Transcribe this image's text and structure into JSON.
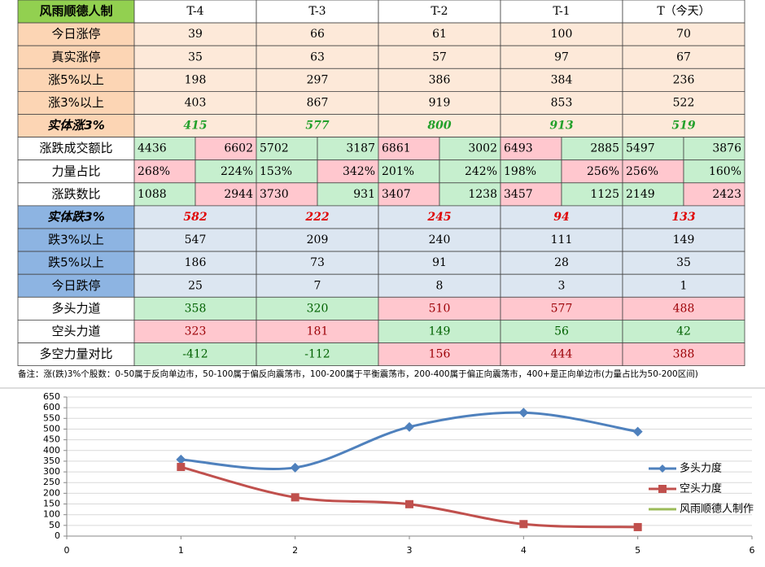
{
  "table": {
    "header": [
      "风雨顺德人制",
      "T-4",
      "T-3",
      "T-2",
      "T-1",
      "T（今天）"
    ],
    "rows": [
      {
        "label": "今日涨停",
        "cells": [
          39,
          66,
          61,
          100,
          70
        ]
      },
      {
        "label": "真实涨停",
        "cells": [
          35,
          63,
          57,
          97,
          67
        ]
      },
      {
        "label": "涨5%以上",
        "cells": [
          198,
          297,
          386,
          384,
          236
        ]
      },
      {
        "label": "涨3%以上",
        "cells": [
          403,
          867,
          919,
          853,
          522
        ]
      },
      {
        "label": "实体涨3%",
        "cells": [
          415,
          577,
          800,
          913,
          519
        ]
      },
      {
        "label": "涨跌成交额比",
        "cells": [
          [
            4436,
            6602
          ],
          [
            5702,
            3187
          ],
          [
            6861,
            3002
          ],
          [
            6493,
            2885
          ],
          [
            5497,
            3876
          ]
        ]
      },
      {
        "label": "力量占比",
        "cells": [
          [
            "268%",
            "224%"
          ],
          [
            "153%",
            "342%"
          ],
          [
            "201%",
            "242%"
          ],
          [
            "198%",
            "256%"
          ],
          [
            "256%",
            "160%"
          ]
        ]
      },
      {
        "label": "涨跌数比",
        "cells": [
          [
            1088,
            2944
          ],
          [
            3730,
            931
          ],
          [
            3407,
            1238
          ],
          [
            3457,
            1125
          ],
          [
            2149,
            2423
          ]
        ]
      },
      {
        "label": "实体跌3%",
        "cells": [
          582,
          222,
          245,
          94,
          133
        ]
      },
      {
        "label": "跌3%以上",
        "cells": [
          547,
          209,
          240,
          111,
          149
        ]
      },
      {
        "label": "跌5%以上",
        "cells": [
          186,
          73,
          91,
          28,
          35
        ]
      },
      {
        "label": "今日跌停",
        "cells": [
          25,
          7,
          8,
          3,
          1
        ]
      },
      {
        "label": "多头力道",
        "cells": [
          358,
          320,
          510,
          577,
          488
        ]
      },
      {
        "label": "空头力道",
        "cells": [
          323,
          181,
          149,
          56,
          42
        ]
      },
      {
        "label": "多空力量对比",
        "cells": [
          -412,
          -112,
          156,
          444,
          388
        ]
      }
    ]
  },
  "note": "备注：涨(跌)3%个股数：0-50属于反向单边市，50-100属于偏反向震荡市，100-200属于平衡震荡市，200-400属于偏正向震荡市，400+是正向单边市(力量占比为50-200区间)",
  "chart_data": {
    "type": "line",
    "x": [
      1,
      2,
      3,
      4,
      5
    ],
    "xlim": [
      0,
      6
    ],
    "xticks": [
      0,
      1,
      2,
      3,
      4,
      5,
      6
    ],
    "ylim": [
      0,
      650
    ],
    "yticks": [
      0,
      50,
      100,
      150,
      200,
      250,
      300,
      350,
      400,
      450,
      500,
      550,
      600,
      650
    ],
    "grid": true,
    "legend": "right",
    "series": [
      {
        "name": "多头力度",
        "color": "#4f81bd",
        "marker": "diamond",
        "values": [
          358,
          320,
          510,
          577,
          488
        ]
      },
      {
        "name": "空头力度",
        "color": "#c0504d",
        "marker": "square",
        "values": [
          323,
          181,
          149,
          56,
          42
        ]
      },
      {
        "name": "风雨顺德人制作",
        "color": "#9bbb59"
      }
    ]
  }
}
